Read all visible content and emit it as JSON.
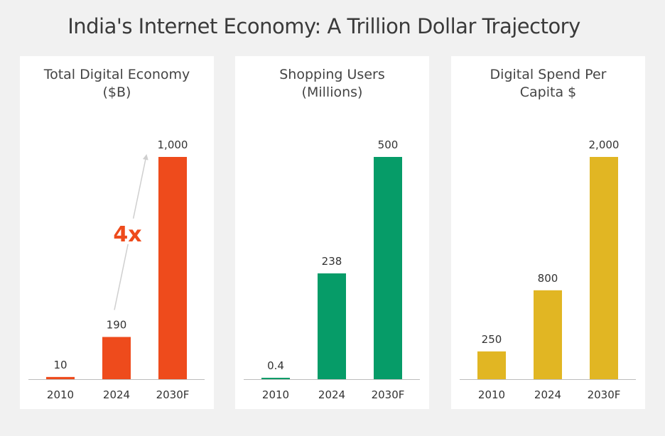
{
  "title": "India's Internet Economy: A Trillion Dollar Trajectory",
  "chart_data": [
    {
      "type": "bar",
      "title": "Total Digital Economy\n($B)",
      "categories": [
        "2010",
        "2024",
        "2030F"
      ],
      "values": [
        10,
        190,
        1000
      ],
      "value_labels": [
        "10",
        "190",
        "1,000"
      ],
      "color": "#ee4b1c",
      "ylim": [
        0,
        1000
      ],
      "annotation": {
        "text": "4x",
        "color": "#ee4b1c"
      }
    },
    {
      "type": "bar",
      "title": "Shopping Users\n(Millions)",
      "categories": [
        "2010",
        "2024",
        "2030F"
      ],
      "values": [
        0.4,
        238,
        500
      ],
      "value_labels": [
        "0.4",
        "238",
        "500"
      ],
      "color": "#069c68",
      "ylim": [
        0,
        500
      ]
    },
    {
      "type": "bar",
      "title": "Digital Spend Per\nCapita $",
      "categories": [
        "2010",
        "2024",
        "2030F"
      ],
      "values": [
        250,
        800,
        2000
      ],
      "value_labels": [
        "250",
        "800",
        "2,000"
      ],
      "color": "#e1b623",
      "ylim": [
        0,
        2000
      ]
    }
  ]
}
